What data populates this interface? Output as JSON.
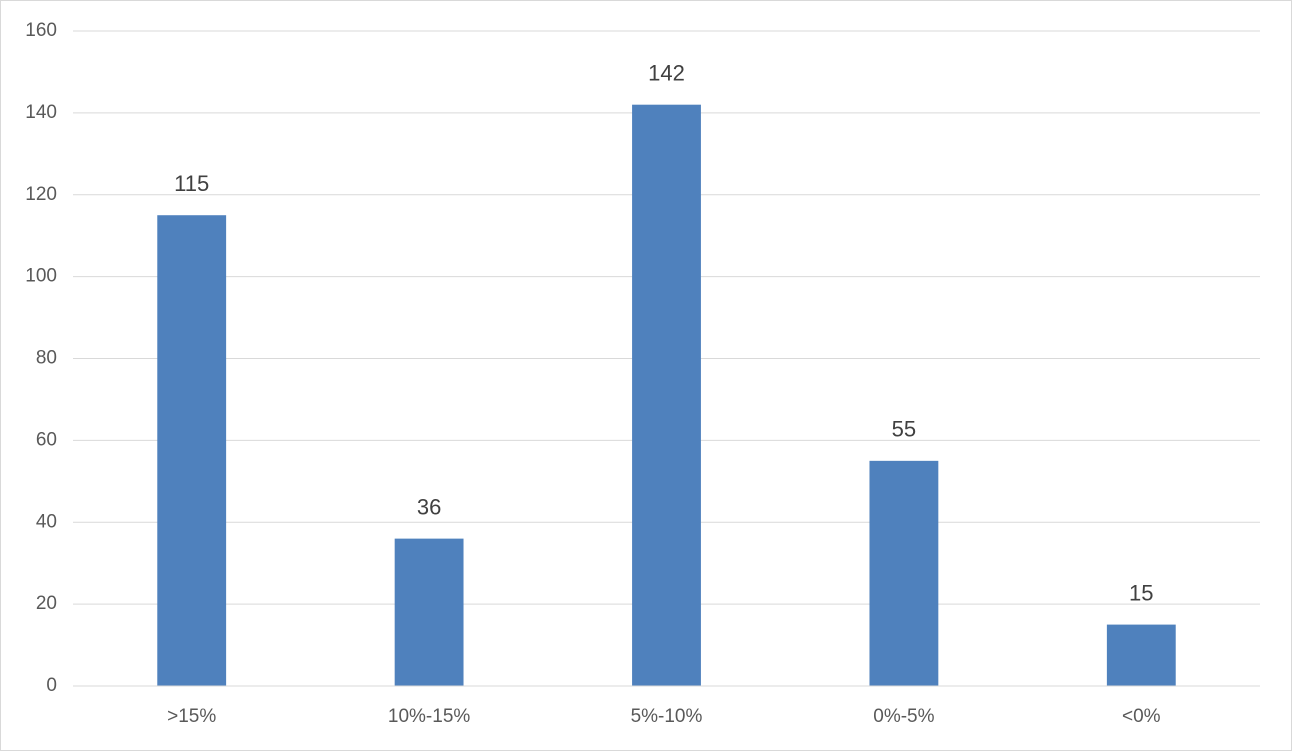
{
  "chart_data": {
    "type": "bar",
    "categories": [
      ">15%",
      "10%-15%",
      "5%-10%",
      "0%-5%",
      "<0%"
    ],
    "values": [
      115,
      36,
      142,
      55,
      15
    ],
    "color": "#4f81bd",
    "ylim": [
      0,
      160
    ],
    "yticks": [
      0,
      20,
      40,
      60,
      80,
      100,
      120,
      140,
      160
    ],
    "grid": true,
    "data_labels": true
  }
}
